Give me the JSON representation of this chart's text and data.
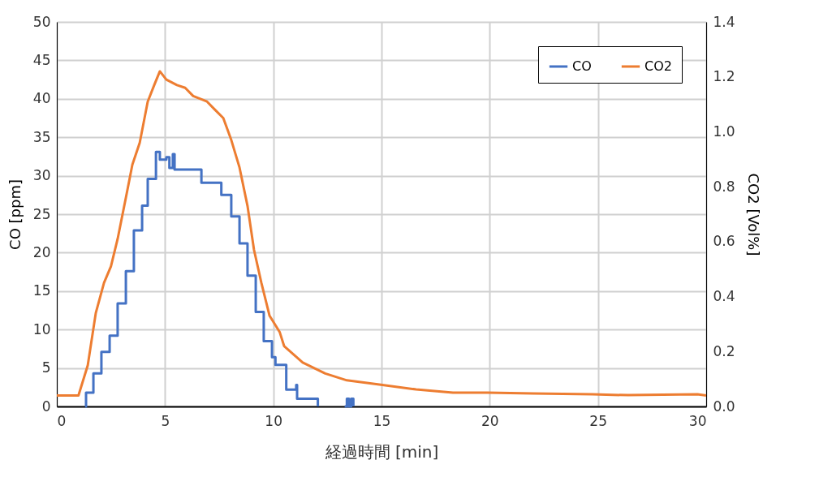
{
  "chart_data": {
    "type": "line",
    "xlabel": "経過時間 [min]",
    "ylabel": "CO [ppm]",
    "y2label": "CO2 [Vol%]",
    "xlim": [
      0,
      30
    ],
    "xticks": [
      0,
      5,
      10,
      15,
      20,
      25,
      30
    ],
    "ylim": [
      0,
      50
    ],
    "yticks": [
      0,
      5,
      10,
      15,
      20,
      25,
      30,
      35,
      40,
      45,
      50
    ],
    "y2lim": [
      0,
      1.4
    ],
    "y2ticks": [
      {
        "value": 0,
        "label": "0.0"
      },
      {
        "value": 0.2,
        "label": "0.2"
      },
      {
        "value": 0.4,
        "label": "0.4"
      },
      {
        "value": 0.6,
        "label": "0.6"
      },
      {
        "value": 0.8,
        "label": "0.8"
      },
      {
        "value": 1.0,
        "label": "1.0"
      },
      {
        "value": 1.2,
        "label": "1.2"
      },
      {
        "value": 1.4,
        "label": "1.4"
      }
    ],
    "grid": true,
    "legend": "top right",
    "marker": "none",
    "line_style": "solid",
    "series": [
      {
        "name": "CO",
        "color": "#4472c4",
        "type": "step",
        "x": [
          1.31,
          1.35,
          1.69,
          2.06,
          2.44,
          2.81,
          3.19,
          3.56,
          3.94,
          4.2,
          4.58,
          4.76,
          5.06,
          5.2,
          5.36,
          5.44,
          6.68,
          7.6,
          7.7,
          8.06,
          8.44,
          8.81,
          9.19,
          9.56,
          9.94,
          10.1,
          10.6,
          11.06,
          11.1,
          12.06,
          12.1,
          13.3,
          13.4,
          13.5,
          13.6,
          13.7
        ],
        "values": [
          0,
          1.8,
          4.3,
          7.1,
          9.2,
          13.4,
          17.6,
          22.9,
          26.1,
          29.6,
          33.1,
          32.1,
          32.4,
          31.0,
          32.8,
          30.8,
          29.1,
          27.5,
          27.5,
          24.7,
          21.2,
          17.0,
          12.3,
          8.5,
          6.4,
          5.4,
          2.2,
          2.8,
          1,
          0,
          null,
          0,
          1,
          0,
          1,
          0
        ]
      },
      {
        "name": "CO2",
        "color": "#ed7d31",
        "type": "line",
        "axis": "y2",
        "x": [
          0,
          0.5,
          1.0,
          1.43,
          1.8,
          2.18,
          2.5,
          2.81,
          3.19,
          3.49,
          3.83,
          4.2,
          4.5,
          4.76,
          5.06,
          5.55,
          5.93,
          6.3,
          6.94,
          7.31,
          7.69,
          8.06,
          8.44,
          8.81,
          9.11,
          9.45,
          9.83,
          10.3,
          10.5,
          11.36,
          12.4,
          13.4,
          14.9,
          16.6,
          18.3,
          19.9,
          22,
          24.75,
          26.4,
          29.6,
          30
        ],
        "values": [
          0.04,
          0.04,
          0.04,
          0.15,
          0.34,
          0.45,
          0.51,
          0.61,
          0.76,
          0.88,
          0.96,
          1.11,
          1.17,
          1.22,
          1.19,
          1.17,
          1.16,
          1.13,
          1.11,
          1.08,
          1.05,
          0.97,
          0.87,
          0.73,
          0.57,
          0.45,
          0.33,
          0.27,
          0.22,
          0.16,
          0.12,
          0.095,
          0.08,
          0.062,
          0.05,
          0.05,
          0.047,
          0.044,
          0.041,
          0.044,
          0.04
        ]
      }
    ]
  }
}
